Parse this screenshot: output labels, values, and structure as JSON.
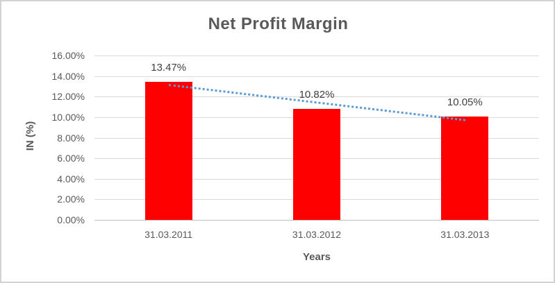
{
  "chart_data": {
    "type": "bar",
    "title": "Net Profit Margin",
    "categories": [
      "31.03.2011",
      "31.03.2012",
      "31.03.2013"
    ],
    "values": [
      13.47,
      10.82,
      10.05
    ],
    "data_labels": [
      "13.47%",
      "10.82%",
      "10.05%"
    ],
    "xlabel": "Years",
    "ylabel": "IN (%)",
    "ylim": [
      0,
      16
    ],
    "ytick_step": 2,
    "ytick_labels": [
      "0.00%",
      "2.00%",
      "4.00%",
      "6.00%",
      "8.00%",
      "10.00%",
      "12.00%",
      "14.00%",
      "16.00%"
    ],
    "grid": true,
    "legend": "none",
    "bar_color": "#ff0000",
    "trendline": {
      "type": "linear",
      "style": "dotted",
      "color": "#5b9bd5"
    }
  },
  "colors": {
    "gridline": "#d9d9d9",
    "axis_line": "#bfbfbf",
    "tick_text": "#595959",
    "title_text": "#595959",
    "data_label_text": "#404040",
    "frame_border": "#d2d2d2",
    "background": "#ffffff"
  }
}
